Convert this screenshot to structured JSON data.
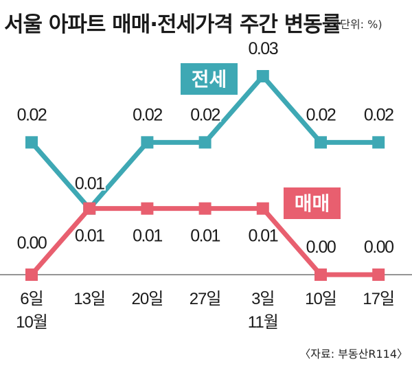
{
  "title": "서울 아파트 매매·전세가격 주간 변동률",
  "unit": "(단위: %)",
  "source": "〈자료: 부동산R114〉",
  "colors": {
    "jeonse": "#3ea8b4",
    "maemae": "#e85f6f",
    "axis": "#555555",
    "text": "#1a1a1a"
  },
  "chart_data": {
    "type": "line",
    "title": "서울 아파트 매매·전세가격 주간 변동률",
    "x": [
      "6일",
      "13일",
      "20일",
      "27일",
      "3일",
      "10일",
      "17일"
    ],
    "month_labels": [
      {
        "index": 0,
        "label": "10월"
      },
      {
        "index": 4,
        "label": "11월"
      }
    ],
    "ylim": [
      0,
      0.03
    ],
    "grid": false,
    "series": [
      {
        "name": "전세",
        "color": "#3ea8b4",
        "values": [
          0.02,
          0.01,
          0.02,
          0.02,
          0.03,
          0.02,
          0.02
        ],
        "labels": [
          "0.02",
          "0.01",
          "0.02",
          "0.02",
          "0.03",
          "0.02",
          "0.02"
        ]
      },
      {
        "name": "매매",
        "color": "#e85f6f",
        "values": [
          0.0,
          0.01,
          0.01,
          0.01,
          0.01,
          0.0,
          0.0
        ],
        "labels": [
          "0.00",
          "0.01",
          "0.01",
          "0.01",
          "0.01",
          "0.00",
          "0.00"
        ]
      }
    ]
  }
}
